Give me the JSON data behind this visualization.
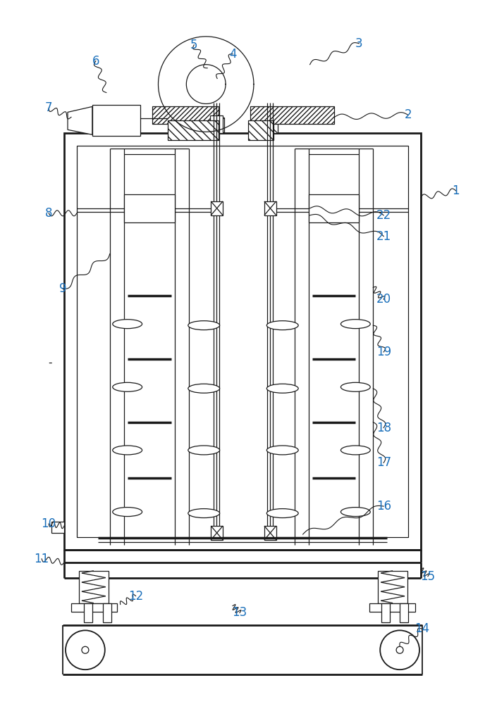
{
  "fig_width": 6.88,
  "fig_height": 10.0,
  "dpi": 100,
  "line_color": "#1a1a1a",
  "bg_color": "#ffffff",
  "label_color": "#1a6fba",
  "label_fontsize": 12,
  "lw_main": 2.0,
  "lw_med": 1.3,
  "lw_thin": 0.9
}
